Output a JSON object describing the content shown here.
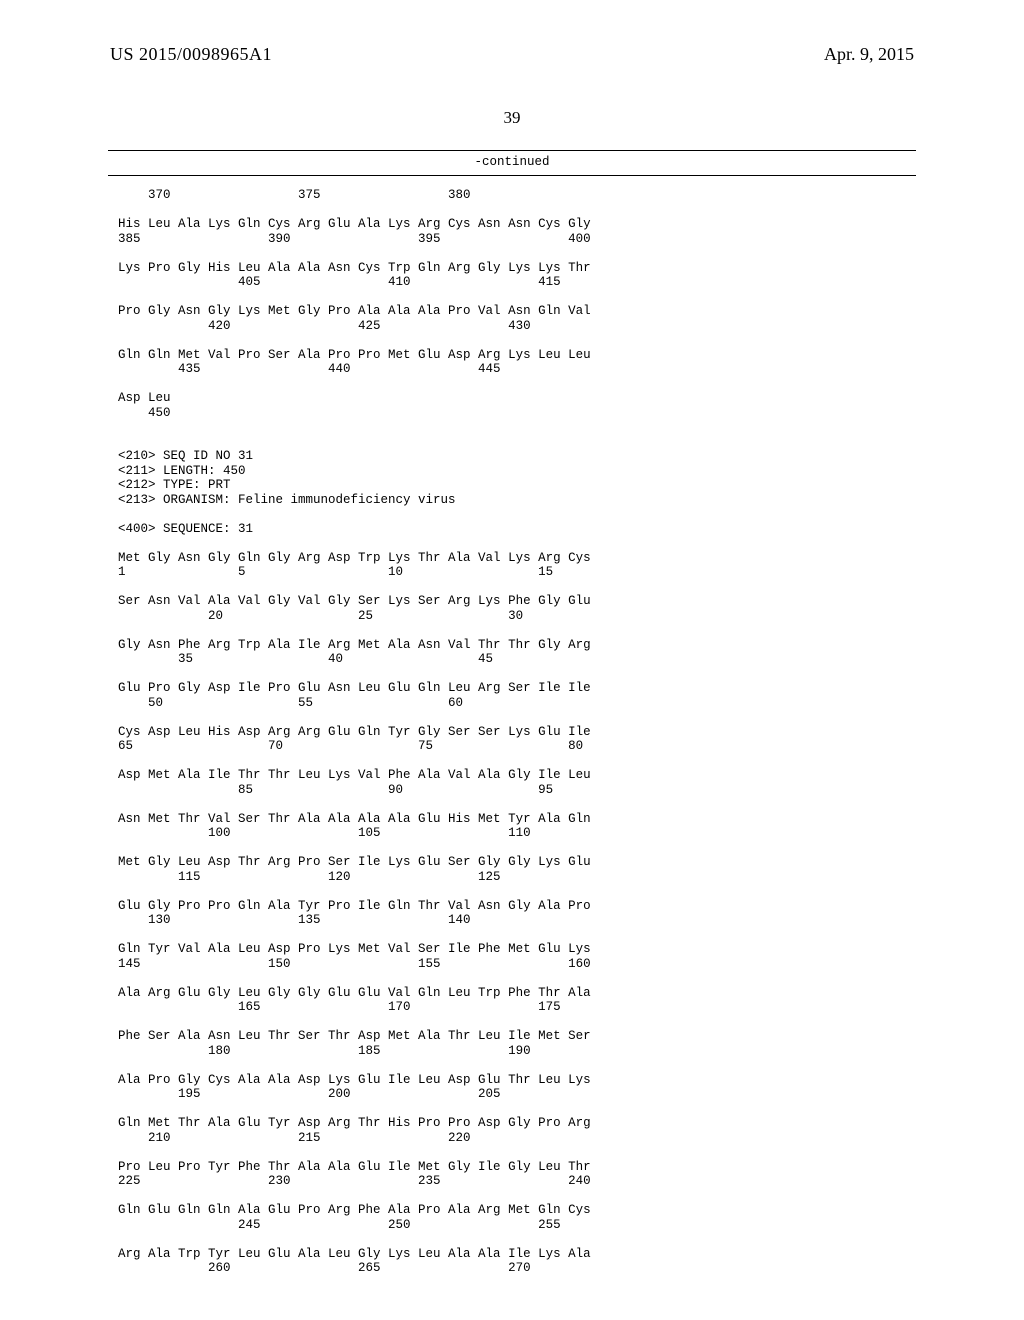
{
  "header": {
    "left": "US 2015/0098965A1",
    "right": "Apr. 9, 2015"
  },
  "page_number": "39",
  "continued_label": "-continued",
  "sequence_text": "    370                 375                 380\n\nHis Leu Ala Lys Gln Cys Arg Glu Ala Lys Arg Cys Asn Asn Cys Gly\n385                 390                 395                 400\n\nLys Pro Gly His Leu Ala Ala Asn Cys Trp Gln Arg Gly Lys Lys Thr\n                405                 410                 415\n\nPro Gly Asn Gly Lys Met Gly Pro Ala Ala Ala Pro Val Asn Gln Val\n            420                 425                 430\n\nGln Gln Met Val Pro Ser Ala Pro Pro Met Glu Asp Arg Lys Leu Leu\n        435                 440                 445\n\nAsp Leu\n    450\n\n\n<210> SEQ ID NO 31\n<211> LENGTH: 450\n<212> TYPE: PRT\n<213> ORGANISM: Feline immunodeficiency virus\n\n<400> SEQUENCE: 31\n\nMet Gly Asn Gly Gln Gly Arg Asp Trp Lys Thr Ala Val Lys Arg Cys\n1               5                   10                  15\n\nSer Asn Val Ala Val Gly Val Gly Ser Lys Ser Arg Lys Phe Gly Glu\n            20                  25                  30\n\nGly Asn Phe Arg Trp Ala Ile Arg Met Ala Asn Val Thr Thr Gly Arg\n        35                  40                  45\n\nGlu Pro Gly Asp Ile Pro Glu Asn Leu Glu Gln Leu Arg Ser Ile Ile\n    50                  55                  60\n\nCys Asp Leu His Asp Arg Arg Glu Gln Tyr Gly Ser Ser Lys Glu Ile\n65                  70                  75                  80\n\nAsp Met Ala Ile Thr Thr Leu Lys Val Phe Ala Val Ala Gly Ile Leu\n                85                  90                  95\n\nAsn Met Thr Val Ser Thr Ala Ala Ala Ala Glu His Met Tyr Ala Gln\n            100                 105                 110\n\nMet Gly Leu Asp Thr Arg Pro Ser Ile Lys Glu Ser Gly Gly Lys Glu\n        115                 120                 125\n\nGlu Gly Pro Pro Gln Ala Tyr Pro Ile Gln Thr Val Asn Gly Ala Pro\n    130                 135                 140\n\nGln Tyr Val Ala Leu Asp Pro Lys Met Val Ser Ile Phe Met Glu Lys\n145                 150                 155                 160\n\nAla Arg Glu Gly Leu Gly Gly Glu Glu Val Gln Leu Trp Phe Thr Ala\n                165                 170                 175\n\nPhe Ser Ala Asn Leu Thr Ser Thr Asp Met Ala Thr Leu Ile Met Ser\n            180                 185                 190\n\nAla Pro Gly Cys Ala Ala Asp Lys Glu Ile Leu Asp Glu Thr Leu Lys\n        195                 200                 205\n\nGln Met Thr Ala Glu Tyr Asp Arg Thr His Pro Pro Asp Gly Pro Arg\n    210                 215                 220\n\nPro Leu Pro Tyr Phe Thr Ala Ala Glu Ile Met Gly Ile Gly Leu Thr\n225                 230                 235                 240\n\nGln Glu Gln Gln Ala Glu Pro Arg Phe Ala Pro Ala Arg Met Gln Cys\n                245                 250                 255\n\nArg Ala Trp Tyr Leu Glu Ala Leu Gly Lys Leu Ala Ala Ile Lys Ala\n            260                 265                 270"
}
